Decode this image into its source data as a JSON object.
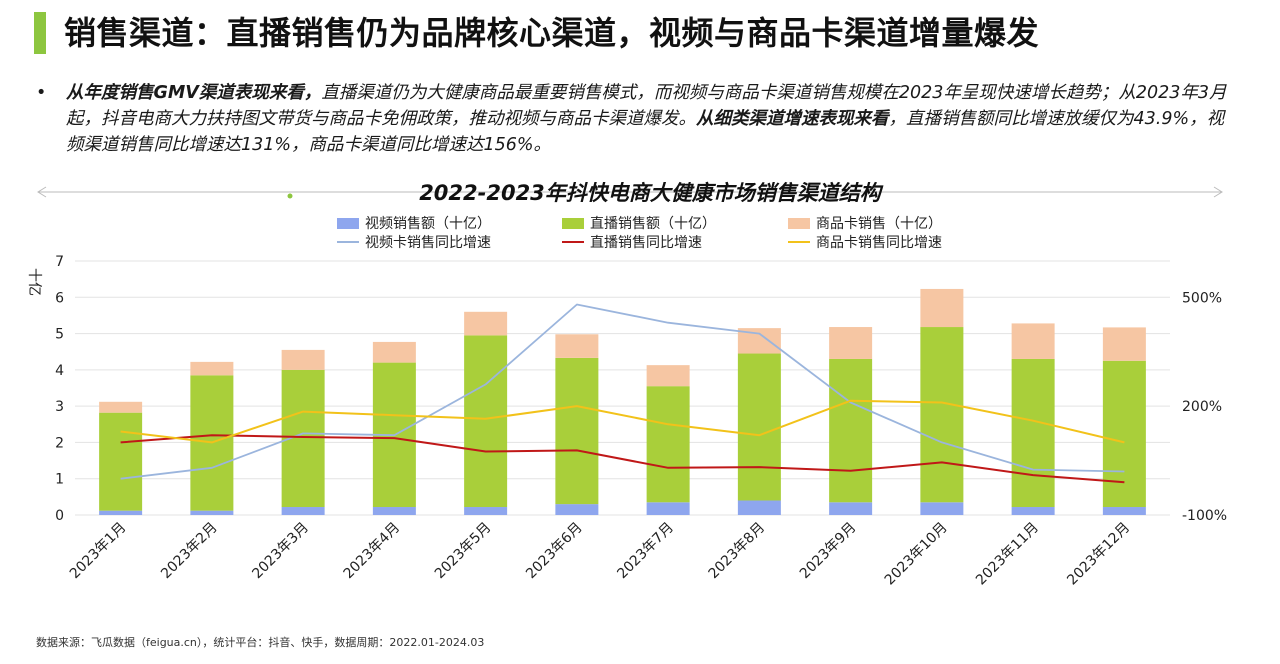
{
  "header": {
    "title": "销售渠道：直播销售仍为品牌核心渠道，视频与商品卡渠道增量爆发"
  },
  "summary": {
    "bullet": "•",
    "part1_bold": "从年度销售GMV渠道表现来看，",
    "part2": "直播渠道仍为大健康商品最重要销售模式，而视频与商品卡渠道销售规模在2023年呈现快速增长趋势；从2023年3月起，抖音电商大力扶持图文带货与商品卡免佣政策，推动视频与商品卡渠道爆发。",
    "part3_bold": "从细类渠道增速表现来看",
    "part4": "，直播销售额同比增速放缓仅为43.9%，视频渠道销售同比增速达131%，商品卡渠道同比增速达156%。"
  },
  "footer": {
    "source": "数据来源：飞瓜数据（feigua.cn），统计平台：抖音、快手，数据周期：2022.01-2024.03"
  },
  "chart_data": {
    "type": "bar",
    "stacked": true,
    "title": "2022-2023年抖快电商大健康市场销售渠道结构",
    "ylabel": "十亿",
    "ylim": [
      0,
      7
    ],
    "yticks": [
      "0",
      "1",
      "2",
      "3",
      "4",
      "5",
      "6",
      "7"
    ],
    "y2lim": [
      -100,
      600
    ],
    "y2ticks": [
      {
        "value": -100,
        "label": "-100%"
      },
      {
        "value": 200,
        "label": "200%"
      },
      {
        "value": 500,
        "label": "500%"
      }
    ],
    "grid": true,
    "legend_position": "top",
    "categories": [
      "2023年1月",
      "2023年2月",
      "2023年3月",
      "2023年4月",
      "2023年5月",
      "2023年6月",
      "2023年7月",
      "2023年8月",
      "2023年9月",
      "2023年10月",
      "2023年11月",
      "2023年12月"
    ],
    "bar_series": [
      {
        "name": "视频销售额（十亿）",
        "color": "#8ea6ee",
        "values": [
          0.12,
          0.12,
          0.22,
          0.22,
          0.22,
          0.3,
          0.35,
          0.4,
          0.35,
          0.35,
          0.22,
          0.22
        ]
      },
      {
        "name": "直播销售额（十亿）",
        "color": "#a9cf3a",
        "values": [
          2.7,
          3.73,
          3.78,
          3.98,
          4.73,
          4.03,
          3.2,
          4.05,
          3.95,
          4.83,
          4.08,
          4.03
        ]
      },
      {
        "name": "商品卡销售（十亿）",
        "color": "#f6c6a3",
        "values": [
          0.3,
          0.37,
          0.55,
          0.57,
          0.65,
          0.65,
          0.58,
          0.7,
          0.88,
          1.05,
          0.98,
          0.92
        ]
      }
    ],
    "line_series": [
      {
        "name": "视频卡销售同比增速",
        "color": "#9bb5dd",
        "values": [
          0,
          30,
          125,
          120,
          260,
          480,
          430,
          400,
          210,
          100,
          25,
          20
        ]
      },
      {
        "name": "直播销售同比增速",
        "color": "#c01818",
        "values": [
          100,
          120,
          115,
          112,
          75,
          78,
          30,
          32,
          22,
          45,
          10,
          -10
        ]
      },
      {
        "name": "商品卡销售同比增速",
        "color": "#f2c21a",
        "values": [
          130,
          100,
          185,
          175,
          165,
          200,
          150,
          120,
          215,
          210,
          160,
          100
        ]
      }
    ]
  }
}
